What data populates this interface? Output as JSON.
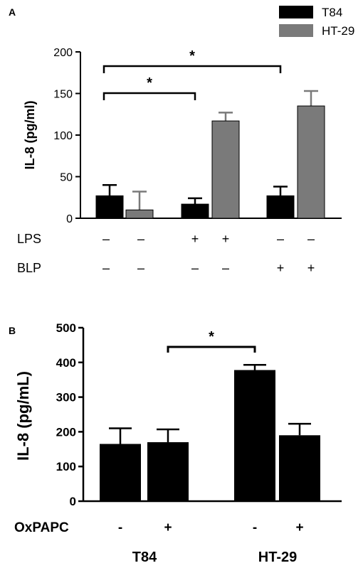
{
  "panels": {
    "a": {
      "label": "A"
    },
    "b": {
      "label": "B"
    }
  },
  "colors": {
    "t84": "#000000",
    "ht29": "#7a7a7a"
  },
  "chart_data": [
    {
      "panel": "A",
      "type": "bar",
      "ylabel": "IL-8 (pg/ml)",
      "ylim": [
        0,
        200
      ],
      "yticks": [
        0,
        50,
        100,
        150,
        200
      ],
      "groups": 3,
      "series": [
        {
          "name": "T84",
          "color": "#000000",
          "values": [
            27,
            17,
            27
          ],
          "errors": [
            13,
            7,
            11
          ]
        },
        {
          "name": "HT-29",
          "color": "#7a7a7a",
          "values": [
            10,
            117,
            135
          ],
          "errors": [
            22,
            10,
            18
          ]
        }
      ],
      "conditions": [
        {
          "label": "LPS",
          "signs": [
            "–",
            "–",
            "+",
            "+",
            "–",
            "–"
          ]
        },
        {
          "label": "BLP",
          "signs": [
            "–",
            "–",
            "–",
            "–",
            "+",
            "+"
          ]
        }
      ],
      "significance": [
        {
          "from_bar": 1,
          "to_bar": 3,
          "label": "*"
        },
        {
          "from_bar": 1,
          "to_bar": 5,
          "label": "*"
        }
      ]
    },
    {
      "panel": "B",
      "type": "bar",
      "ylabel": "IL-8 (pg/mL)",
      "ylim": [
        0,
        500
      ],
      "yticks": [
        0,
        100,
        200,
        300,
        400,
        500
      ],
      "bars": [
        {
          "value": 165,
          "error": 45
        },
        {
          "value": 170,
          "error": 37
        },
        {
          "value": 378,
          "error": 15
        },
        {
          "value": 190,
          "error": 33
        }
      ],
      "condition": {
        "label": "OxPAPC",
        "signs": [
          "-",
          "+",
          "-",
          "+"
        ]
      },
      "categories": [
        "T84",
        "HT-29"
      ],
      "significance": [
        {
          "from_bar": 2,
          "to_bar": 3,
          "label": "*"
        }
      ]
    }
  ]
}
